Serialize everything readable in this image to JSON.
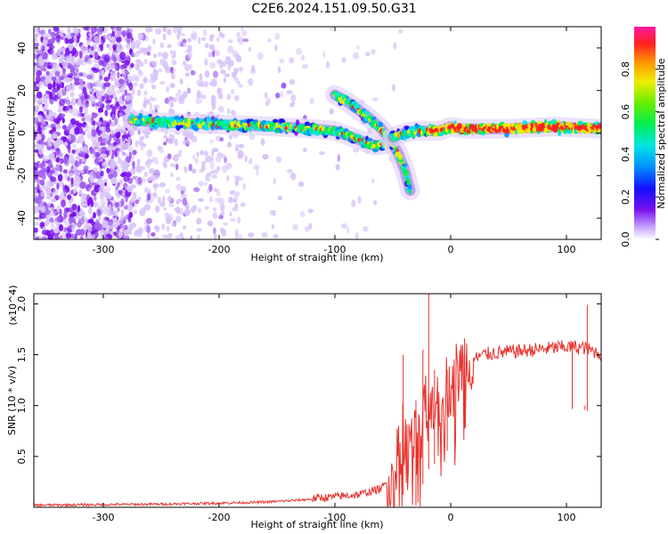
{
  "title": "C2E6.2024.151.09.50.G31",
  "chart_data": [
    {
      "type": "heatmap",
      "xlabel": "Height of straight line (km)",
      "ylabel": "Frequency (Hz)",
      "xlim": [
        -360,
        130
      ],
      "ylim": [
        -50,
        50
      ],
      "x_ticks": [
        -300,
        -200,
        -100,
        0,
        100
      ],
      "y_ticks": [
        -40,
        -20,
        0,
        20,
        40
      ],
      "colorbar": {
        "label": "Normalized spectral amplitude",
        "range": [
          0,
          1
        ],
        "ticks": [
          0.0,
          0.2,
          0.4,
          0.6,
          0.8
        ]
      },
      "ridges": [
        {
          "name": "",
          "points": [
            [
              -275,
              6
            ],
            [
              -250,
              5
            ],
            [
              -200,
              4
            ],
            [
              -150,
              3
            ],
            [
              -120,
              2
            ],
            [
              -100,
              1
            ],
            [
              -90,
              -1
            ],
            [
              -75,
              -4
            ],
            [
              -65,
              -6
            ],
            [
              -55,
              -5
            ]
          ]
        },
        {
          "name": "",
          "points": [
            [
              -100,
              18
            ],
            [
              -90,
              15
            ],
            [
              -80,
              11
            ],
            [
              -70,
              7
            ],
            [
              -60,
              2
            ],
            [
              -52,
              -3
            ],
            [
              -45,
              -10
            ],
            [
              -40,
              -17
            ],
            [
              -35,
              -27
            ]
          ]
        },
        {
          "name": "",
          "points": [
            [
              -50,
              -2
            ],
            [
              -40,
              0
            ],
            [
              -30,
              1
            ],
            [
              -10,
              1
            ],
            [
              0,
              3
            ],
            [
              10,
              2
            ],
            [
              50,
              2
            ],
            [
              90,
              3
            ],
            [
              130,
              2
            ]
          ]
        }
      ]
    },
    {
      "type": "line",
      "xlabel": "Height of straight line (km)",
      "ylabel": "SNR (10 * v/v)",
      "y_multiplier": "(x10^4)",
      "xlim": [
        -360,
        130
      ],
      "ylim": [
        0,
        2.1
      ],
      "x_ticks": [
        -300,
        -200,
        -100,
        0,
        100
      ],
      "y_ticks": [
        0.5,
        1.0,
        1.5,
        2.0
      ],
      "color": "#e8322c",
      "envelope": [
        [
          -360,
          0.02
        ],
        [
          -300,
          0.025
        ],
        [
          -250,
          0.03
        ],
        [
          -200,
          0.04
        ],
        [
          -160,
          0.05
        ],
        [
          -130,
          0.07
        ],
        [
          -100,
          0.1
        ],
        [
          -80,
          0.12
        ],
        [
          -60,
          0.18
        ],
        [
          -50,
          0.3
        ],
        [
          -45,
          0.5
        ],
        [
          -42,
          0.8
        ],
        [
          -38,
          0.5
        ],
        [
          -30,
          0.6
        ],
        [
          -22,
          0.9
        ],
        [
          -18,
          1.0
        ],
        [
          -10,
          1.05
        ],
        [
          0,
          1.2
        ],
        [
          10,
          1.35
        ],
        [
          20,
          1.45
        ],
        [
          30,
          1.5
        ],
        [
          50,
          1.52
        ],
        [
          80,
          1.55
        ],
        [
          100,
          1.57
        ],
        [
          115,
          1.56
        ],
        [
          130,
          1.5
        ]
      ],
      "peaks": [
        [
          -41,
          1.5
        ],
        [
          -30,
          1.05
        ],
        [
          -24,
          1.55
        ],
        [
          -19,
          2.1
        ],
        [
          -14,
          1.35
        ],
        [
          -3,
          1.35
        ],
        [
          12,
          1.47
        ],
        [
          105,
          1.62
        ],
        [
          118,
          1.99
        ],
        [
          116,
          1.0
        ]
      ]
    }
  ]
}
